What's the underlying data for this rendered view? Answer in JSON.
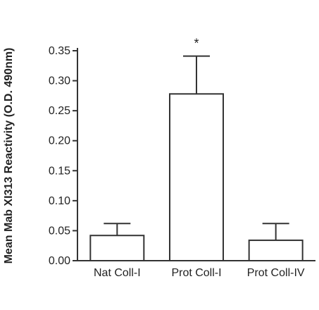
{
  "chart_data": {
    "type": "bar",
    "categories": [
      "Nat Coll-I",
      "Prot Coll-I",
      "Prot Coll-IV"
    ],
    "values": [
      0.042,
      0.278,
      0.034
    ],
    "error_upper": [
      0.062,
      0.341,
      0.062
    ],
    "annotations": [
      "",
      "*",
      ""
    ],
    "title": "",
    "xlabel": "",
    "ylabel": "Mean Mab XI313 Reactivity (O.D. 490nm)",
    "ylim": [
      0,
      0.35
    ],
    "yticks": [
      0.0,
      0.05,
      0.1,
      0.15,
      0.2,
      0.25,
      0.3,
      0.35
    ],
    "ytick_labels": [
      "0.00",
      "0.05",
      "0.10",
      "0.15",
      "0.20",
      "0.25",
      "0.30",
      "0.35"
    ],
    "grid": false,
    "bar_fill": "#ffffff",
    "stroke_color": "#333333"
  }
}
